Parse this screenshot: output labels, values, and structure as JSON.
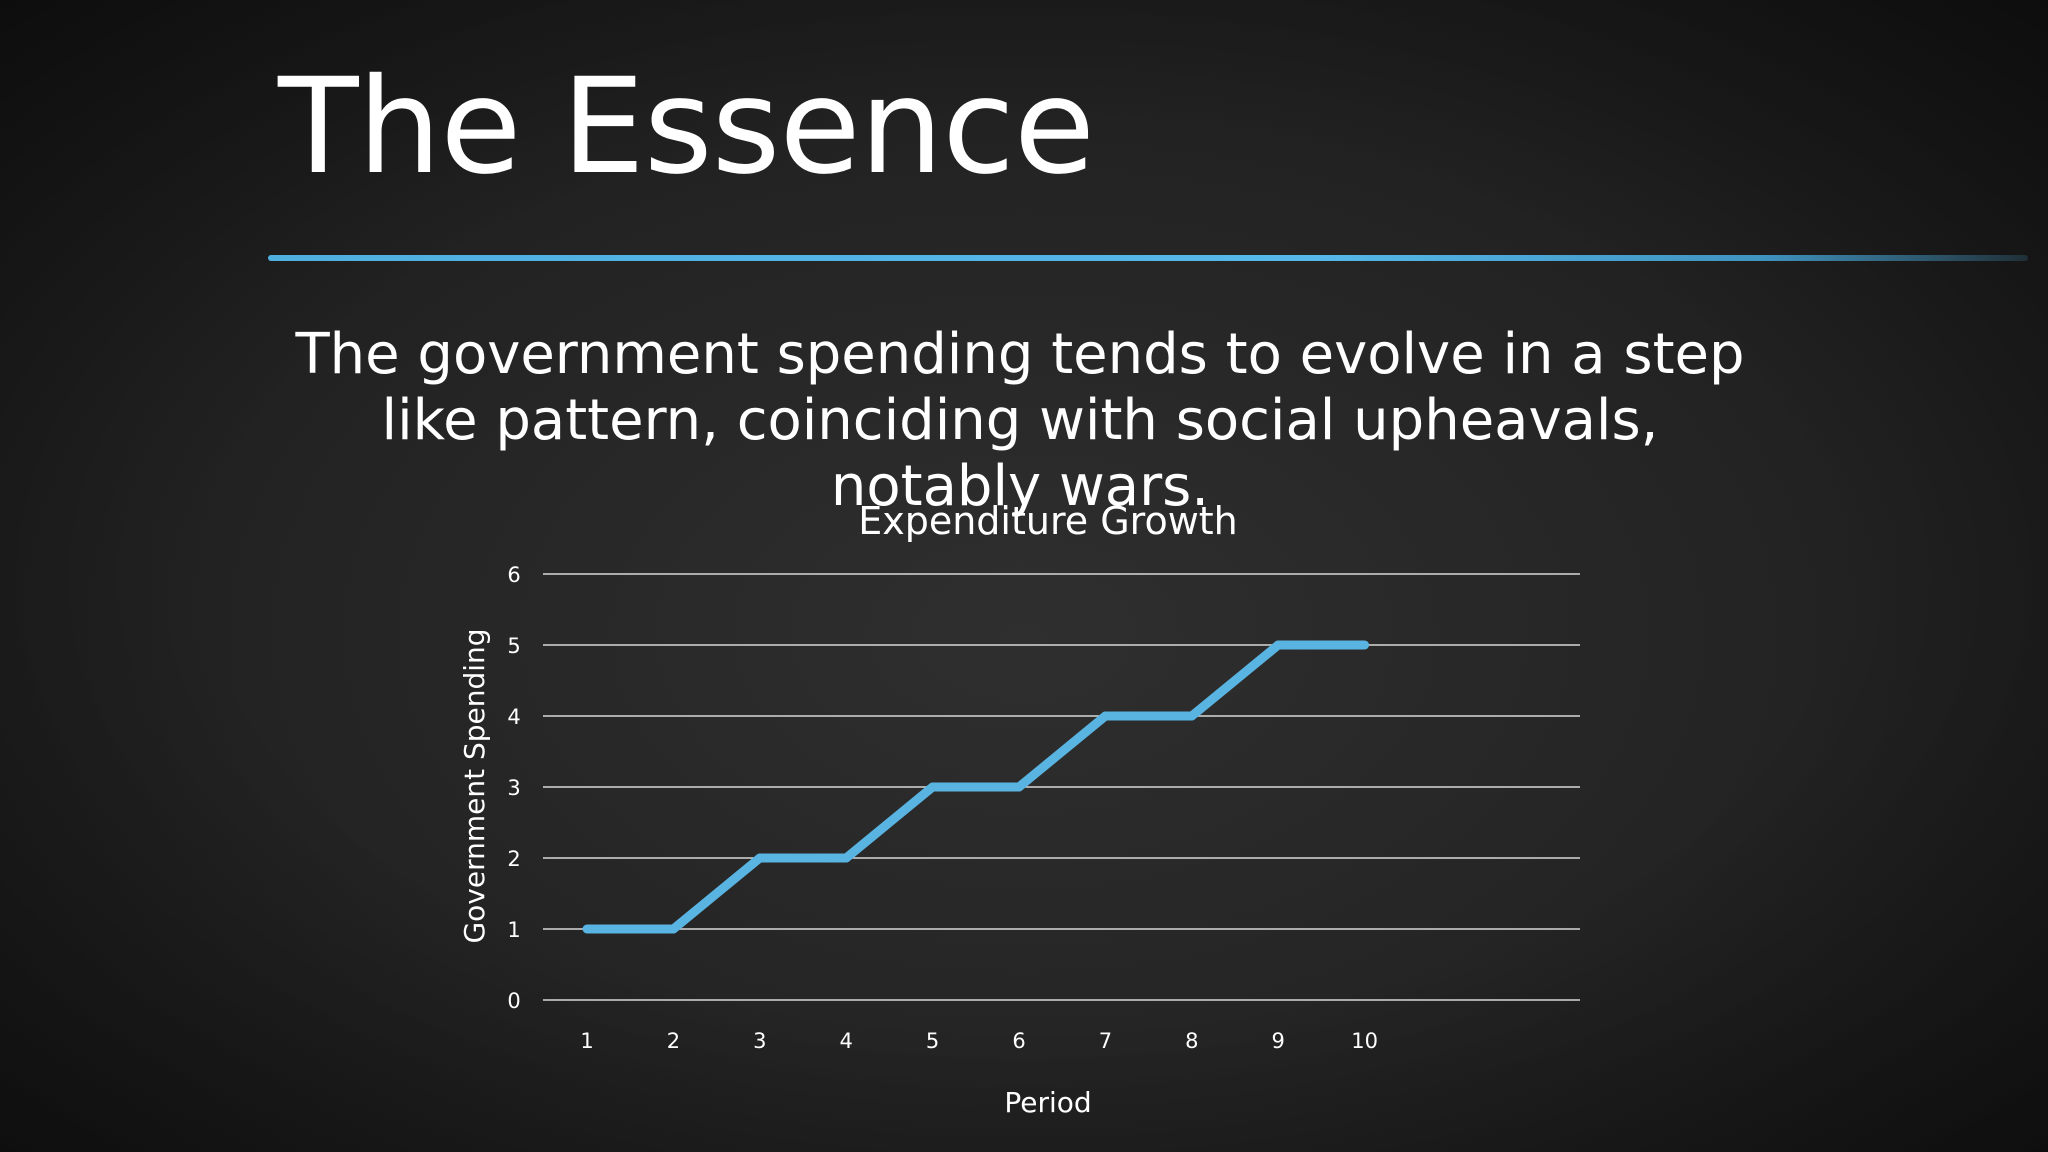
{
  "slide": {
    "title": "The Essence",
    "body": "The government spending tends to evolve in a step like pattern, coinciding with social upheavals, notably wars.",
    "accent_color": "#55b8e8",
    "background_color": "#222222"
  },
  "chart_data": {
    "type": "line",
    "title": "Expenditure Growth",
    "xlabel": "Period",
    "ylabel": "Government Spending",
    "categories": [
      "1",
      "2",
      "3",
      "4",
      "5",
      "6",
      "7",
      "8",
      "9",
      "10"
    ],
    "series": [
      {
        "values": [
          1,
          1,
          2,
          2,
          3,
          3,
          4,
          4,
          5,
          5
        ],
        "color": "#5ab4e2"
      }
    ],
    "ylim": [
      0,
      6
    ],
    "yticks": [
      0,
      1,
      2,
      3,
      4,
      5,
      6
    ],
    "grid": true,
    "legend": "none"
  }
}
